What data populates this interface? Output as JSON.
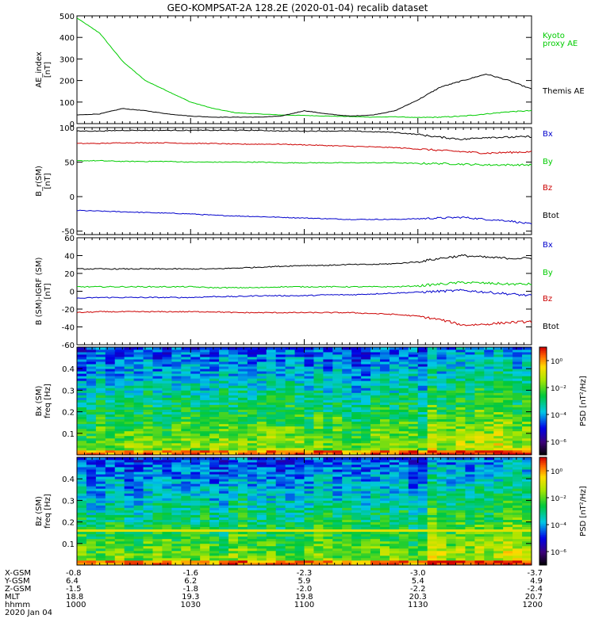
{
  "title": "GEO-KOMPSAT-2A 128.2E (2020-01-04) recalib dataset",
  "colors": {
    "black": "#000000",
    "green": "#00cc00",
    "red": "#cc0000",
    "blue": "#0000cc"
  },
  "chart_data": [
    {
      "type": "line",
      "id": "ae",
      "ylabel": [
        "AE_index",
        "[nT]"
      ],
      "ylim": [
        0,
        500
      ],
      "yticks": [
        0,
        100,
        200,
        300,
        400,
        500
      ],
      "x": [
        0,
        1,
        2,
        3,
        4,
        5,
        6,
        7,
        8,
        9,
        10,
        11,
        12,
        13,
        14,
        15,
        16,
        17,
        18,
        19,
        20
      ],
      "series": [
        {
          "name": "Kyoto proxy AE",
          "label_lines": [
            "Kyoto",
            "proxy AE"
          ],
          "color": "green",
          "values": [
            490,
            420,
            290,
            200,
            150,
            100,
            70,
            50,
            45,
            40,
            38,
            35,
            33,
            30,
            32,
            28,
            30,
            35,
            45,
            55,
            60
          ]
        },
        {
          "name": "Themis AE",
          "label_lines": [
            "Themis AE"
          ],
          "color": "black",
          "values": [
            40,
            45,
            70,
            60,
            45,
            35,
            30,
            30,
            30,
            35,
            60,
            45,
            35,
            40,
            60,
            110,
            170,
            200,
            230,
            200,
            160
          ]
        }
      ]
    },
    {
      "type": "line",
      "id": "bsm",
      "ylabel": [
        "B_r(SM)",
        "[nT]"
      ],
      "ylim": [
        -55,
        100
      ],
      "yticks": [
        -50,
        0,
        50,
        100
      ],
      "x": [
        0,
        1,
        2,
        3,
        4,
        5,
        6,
        7,
        8,
        9,
        10,
        11,
        12,
        13,
        14,
        15,
        16,
        17,
        18,
        19,
        20
      ],
      "series": [
        {
          "name": "Bx",
          "color": "blue",
          "values": [
            -20,
            -21,
            -22,
            -23,
            -24,
            -25,
            -27,
            -28,
            -29,
            -30,
            -31,
            -32,
            -33,
            -33,
            -33,
            -32,
            -31,
            -30,
            -33,
            -35,
            -40
          ]
        },
        {
          "name": "By",
          "color": "green",
          "values": [
            52,
            52,
            51,
            51,
            51,
            50,
            50,
            50,
            50,
            49,
            49,
            49,
            49,
            49,
            49,
            48,
            48,
            47,
            46,
            46,
            46
          ]
        },
        {
          "name": "Bz",
          "color": "red",
          "values": [
            77,
            77,
            78,
            78,
            78,
            77,
            77,
            76,
            76,
            76,
            75,
            74,
            73,
            72,
            71,
            69,
            67,
            65,
            63,
            64,
            65
          ]
        },
        {
          "name": "Btot",
          "color": "black",
          "values": [
            95,
            95,
            96,
            96,
            96,
            96,
            96,
            96,
            96,
            95,
            95,
            95,
            95,
            94,
            93,
            90,
            86,
            83,
            86,
            86,
            87
          ]
        }
      ]
    },
    {
      "type": "line",
      "id": "bigrf",
      "ylabel": [
        "B (SM)-IGRF (SM)",
        "[nT]"
      ],
      "ylim": [
        -60,
        60
      ],
      "yticks": [
        -60,
        -40,
        -20,
        0,
        20,
        40,
        60
      ],
      "x": [
        0,
        1,
        2,
        3,
        4,
        5,
        6,
        7,
        8,
        9,
        10,
        11,
        12,
        13,
        14,
        15,
        16,
        17,
        18,
        19,
        20
      ],
      "series": [
        {
          "name": "Bx",
          "color": "blue",
          "values": [
            -8,
            -7,
            -7,
            -7,
            -7,
            -7,
            -6,
            -6,
            -5,
            -5,
            -5,
            -4,
            -4,
            -3,
            -2,
            -1,
            0,
            1,
            -1,
            -3,
            -5
          ]
        },
        {
          "name": "By",
          "color": "green",
          "values": [
            5,
            5,
            5,
            5,
            5,
            5,
            4,
            4,
            4,
            5,
            5,
            5,
            5,
            5,
            5,
            6,
            8,
            10,
            9,
            8,
            8
          ]
        },
        {
          "name": "Bz",
          "color": "red",
          "values": [
            -24,
            -23,
            -23,
            -23,
            -23,
            -23,
            -23,
            -24,
            -24,
            -24,
            -24,
            -24,
            -24,
            -25,
            -26,
            -28,
            -32,
            -38,
            -37,
            -35,
            -34
          ]
        },
        {
          "name": "Btot",
          "color": "black",
          "values": [
            25,
            25,
            25,
            25,
            25,
            25,
            25,
            26,
            27,
            28,
            29,
            29,
            30,
            30,
            31,
            33,
            37,
            40,
            38,
            37,
            37
          ]
        }
      ]
    },
    {
      "type": "heatmap",
      "id": "bxspec",
      "ylabel": [
        "Bx (SM)",
        "freq [Hz]"
      ],
      "ylim": [
        0,
        0.5
      ],
      "yticks": [
        0.1,
        0.2,
        0.3,
        0.4
      ],
      "colorbar": {
        "label": "PSD [nT²/Hz]",
        "ticks": [
          "10⁰",
          "10⁻²",
          "10⁻⁴",
          "10⁻⁶"
        ],
        "tick_values": [
          0,
          -2,
          -4,
          -6
        ],
        "range": [
          -7,
          1
        ]
      }
    },
    {
      "type": "heatmap",
      "id": "bzspec",
      "ylabel": [
        "Bz (SM)",
        "freq [Hz]"
      ],
      "ylim": [
        0,
        0.5
      ],
      "yticks": [
        0.1,
        0.2,
        0.3,
        0.4
      ],
      "colorbar": {
        "label": "PSD [nT²/Hz]",
        "ticks": [
          "10⁰",
          "10⁻²",
          "10⁻⁴",
          "10⁻⁶"
        ],
        "tick_values": [
          0,
          -2,
          -4,
          -6
        ],
        "range": [
          -7,
          1
        ]
      }
    }
  ],
  "xaxis": {
    "rows": [
      {
        "label": "X-GSM",
        "values": [
          "-0.8",
          "-1.6",
          "-2.3",
          "-3.0",
          "-3.7"
        ]
      },
      {
        "label": "Y-GSM",
        "values": [
          "6.4",
          "6.2",
          "5.9",
          "5.4",
          "4.9"
        ]
      },
      {
        "label": "Z-GSM",
        "values": [
          "-1.5",
          "-1.8",
          "-2.0",
          "-2.2",
          "-2.4"
        ]
      },
      {
        "label": "MLT",
        "values": [
          "18.8",
          "19.3",
          "19.8",
          "20.3",
          "20.7"
        ]
      },
      {
        "label": "hhmm",
        "values": [
          "1000",
          "1030",
          "1100",
          "1130",
          "1200"
        ]
      }
    ],
    "date": "2020 Jan 04"
  }
}
